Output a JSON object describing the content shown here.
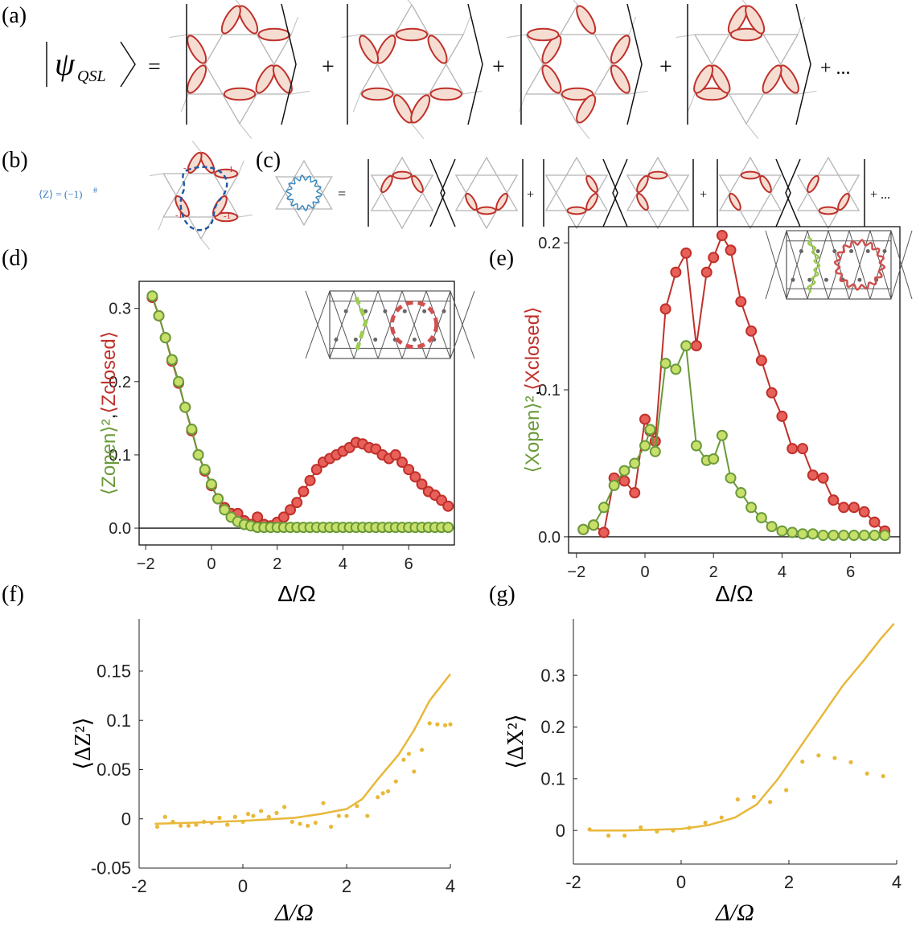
{
  "panel_a": {
    "label": "(a)",
    "psi": "ψ",
    "psi_sub": "QSL",
    "equals": "=",
    "plus": "+",
    "ellipsis": "+ ..."
  },
  "panel_b": {
    "label": "(b)",
    "expr": "⟨Z⟩ = (−1)",
    "expr_sup": "#",
    "minus_one": "-1"
  },
  "panel_c": {
    "label": "(c)",
    "equals": "=",
    "plus": "+",
    "ellipsis": "+ ..."
  },
  "chart_data": [
    {
      "type": "line",
      "panel_label": "(d)",
      "xlabel": "Δ/Ω",
      "ylabel_separator": ",",
      "xlim": [
        -2.2,
        7.39
      ],
      "ylim": [
        -0.023,
        0.337
      ],
      "xticks": [
        {
          "value": -2,
          "label": "−2"
        },
        0,
        2,
        4,
        6
      ],
      "yticks": [
        {
          "value": 0,
          "label": "0.0"
        },
        0.1,
        0.2,
        0.3
      ],
      "zero_line": true,
      "frame": true,
      "series": [
        {
          "name": "⟨Zopen⟩²",
          "color": "#6a9a3a",
          "fill": "#c8e06a",
          "mode": "lines+markers",
          "x": [
            -1.8,
            -1.6,
            -1.4,
            -1.2,
            -1.0,
            -0.8,
            -0.6,
            -0.4,
            -0.2,
            0,
            0.2,
            0.4,
            0.6,
            0.8,
            1.0,
            1.2,
            1.4,
            1.6,
            1.8,
            2.0,
            2.2,
            2.4,
            2.6,
            2.8,
            3.0,
            3.2,
            3.4,
            3.6,
            3.8,
            4.0,
            4.2,
            4.4,
            4.6,
            4.8,
            5.0,
            5.2,
            5.4,
            5.6,
            5.8,
            6.0,
            6.2,
            6.4,
            6.6,
            6.8,
            7.0,
            7.2
          ],
          "values": [
            0.317,
            0.29,
            0.26,
            0.23,
            0.2,
            0.165,
            0.135,
            0.1,
            0.08,
            0.06,
            0.04,
            0.025,
            0.015,
            0.009,
            0.005,
            0.003,
            0.001,
            0.001,
            0.001,
            0.001,
            0.001,
            0.001,
            0.001,
            0.001,
            0.001,
            0.001,
            0.001,
            0.001,
            0.001,
            0.001,
            0.001,
            0.001,
            0.001,
            0.001,
            0.001,
            0.001,
            0.001,
            0.001,
            0.001,
            0.001,
            0.001,
            0.001,
            0.001,
            0.001,
            0.001,
            0.001
          ]
        },
        {
          "name": "⟨Zclosed⟩",
          "color": "#c0302a",
          "fill": "#e8605a",
          "mode": "lines+markers",
          "x": [
            -1.8,
            -1.6,
            -1.4,
            -1.2,
            -1.0,
            -0.8,
            -0.6,
            -0.4,
            -0.2,
            0,
            0.2,
            0.4,
            0.6,
            0.8,
            1.0,
            1.2,
            1.4,
            1.6,
            1.8,
            2.0,
            2.2,
            2.4,
            2.6,
            2.8,
            3.0,
            3.2,
            3.4,
            3.6,
            3.8,
            4.0,
            4.2,
            4.4,
            4.6,
            4.8,
            5.0,
            5.2,
            5.4,
            5.6,
            5.8,
            6.0,
            6.2,
            6.4,
            6.6,
            6.8,
            7.0,
            7.2
          ],
          "values": [
            0.315,
            0.29,
            0.26,
            0.228,
            0.198,
            0.165,
            0.133,
            0.1,
            0.078,
            0.058,
            0.04,
            0.028,
            0.02,
            0.02,
            0.01,
            0.005,
            0.015,
            0.005,
            0.003,
            0.008,
            0.015,
            0.025,
            0.035,
            0.05,
            0.065,
            0.08,
            0.09,
            0.095,
            0.1,
            0.105,
            0.11,
            0.117,
            0.115,
            0.11,
            0.108,
            0.1,
            0.095,
            0.1,
            0.09,
            0.08,
            0.07,
            0.06,
            0.05,
            0.045,
            0.038,
            0.03
          ]
        }
      ]
    },
    {
      "type": "line",
      "panel_label": "(e)",
      "xlabel": "Δ/Ω",
      "ylabel_separator": ",",
      "xlim": [
        -2.23,
        7.44
      ],
      "ylim": [
        -0.011,
        0.211
      ],
      "xticks": [
        {
          "value": -2,
          "label": "−2"
        },
        0,
        2,
        4,
        6
      ],
      "yticks": [
        {
          "value": 0,
          "label": "0.0"
        },
        0.1,
        0.2
      ],
      "zero_line": true,
      "frame": true,
      "series": [
        {
          "name": "⟨Xopen⟩²",
          "color": "#6a9a3a",
          "fill": "#c8e06a",
          "mode": "lines+markers",
          "x": [
            -1.8,
            -1.5,
            -1.2,
            -0.9,
            -0.6,
            -0.3,
            0,
            0.15,
            0.3,
            0.6,
            0.9,
            1.2,
            1.5,
            1.8,
            2.0,
            2.25,
            2.5,
            2.8,
            3.1,
            3.4,
            3.7,
            4.0,
            4.3,
            4.6,
            4.9,
            5.2,
            5.5,
            5.8,
            6.1,
            6.4,
            6.7,
            7.0
          ],
          "values": [
            0.005,
            0.008,
            0.02,
            0.035,
            0.045,
            0.05,
            0.062,
            0.073,
            0.058,
            0.118,
            0.114,
            0.13,
            0.062,
            0.052,
            0.053,
            0.069,
            0.04,
            0.03,
            0.02,
            0.013,
            0.007,
            0.004,
            0.003,
            0.002,
            0.002,
            0.001,
            0.001,
            0.001,
            0.001,
            0.001,
            0.001,
            0.001
          ]
        },
        {
          "name": "⟨Xclosed⟩",
          "color": "#c0302a",
          "fill": "#e8605a",
          "mode": "lines+markers",
          "x": [
            -1.8,
            -1.5,
            -1.2,
            -0.9,
            -0.6,
            -0.3,
            0,
            0.15,
            0.3,
            0.6,
            0.9,
            1.2,
            1.5,
            1.8,
            2.0,
            2.25,
            2.5,
            2.8,
            3.1,
            3.4,
            3.7,
            4.0,
            4.3,
            4.6,
            4.9,
            5.2,
            5.5,
            5.8,
            6.1,
            6.4,
            6.7,
            7.0
          ],
          "values": [
            0.005,
            0.008,
            0.003,
            0.04,
            0.038,
            0.03,
            0.08,
            0.072,
            0.065,
            0.155,
            0.18,
            0.193,
            0.13,
            0.18,
            0.19,
            0.205,
            0.195,
            0.16,
            0.14,
            0.12,
            0.098,
            0.082,
            0.06,
            0.06,
            0.042,
            0.04,
            0.025,
            0.02,
            0.02,
            0.017,
            0.01,
            0.004
          ]
        }
      ]
    },
    {
      "type": "line",
      "panel_label": "(f)",
      "xlabel": "Δ/Ω",
      "ylabel": "⟨ΔZ²⟩",
      "xlim": [
        -2,
        4
      ],
      "ylim": [
        -0.05,
        0.203
      ],
      "xticks": [
        -2,
        0,
        2,
        4
      ],
      "yticks": [
        -0.05,
        0,
        0.05,
        0.1,
        0.15
      ],
      "zero_line": false,
      "frame": false,
      "series": [
        {
          "color": "#e8b83a",
          "mode": "lines",
          "x": [
            -1.7,
            -1,
            0,
            1,
            1.5,
            2,
            2.3,
            2.6,
            3,
            3.3,
            3.6,
            4
          ],
          "values": [
            -0.005,
            -0.004,
            -0.002,
            0.001,
            0.005,
            0.01,
            0.02,
            0.04,
            0.065,
            0.09,
            0.12,
            0.147
          ]
        },
        {
          "color": "#e8b83a",
          "mode": "markers",
          "x": [
            -1.65,
            -1.5,
            -1.35,
            -1.2,
            -1.05,
            -0.9,
            -0.75,
            -0.6,
            -0.45,
            -0.3,
            -0.15,
            0,
            0.1,
            0.2,
            0.35,
            0.5,
            0.65,
            0.8,
            0.95,
            1.1,
            1.25,
            1.4,
            1.55,
            1.7,
            1.85,
            2.0,
            2.2,
            2.4,
            2.6,
            2.7,
            2.8,
            2.95,
            3.1,
            3.2,
            3.3,
            3.45,
            3.6,
            3.75,
            3.9,
            4.0
          ],
          "values": [
            -0.008,
            0.002,
            -0.003,
            -0.007,
            -0.007,
            -0.006,
            -0.003,
            -0.004,
            0.001,
            -0.006,
            0.002,
            -0.003,
            0.005,
            0.003,
            0.008,
            0.002,
            0.006,
            0.012,
            -0.003,
            -0.005,
            -0.007,
            -0.004,
            0.016,
            -0.008,
            0.003,
            0.003,
            0.013,
            0.003,
            0.022,
            0.026,
            0.028,
            0.038,
            0.06,
            0.066,
            0.048,
            0.07,
            0.097,
            0.096,
            0.095,
            0.096
          ]
        }
      ]
    },
    {
      "type": "line",
      "panel_label": "(g)",
      "xlabel": "Δ/Ω",
      "ylabel": "⟨ΔX²⟩",
      "xlim": [
        -2,
        4
      ],
      "ylim": [
        -0.065,
        0.409
      ],
      "xticks": [
        -2,
        0,
        2,
        4
      ],
      "yticks": [
        0,
        0.1,
        0.2,
        0.3
      ],
      "zero_line": false,
      "frame": false,
      "series": [
        {
          "color": "#e8b83a",
          "mode": "lines",
          "x": [
            -1.7,
            -1,
            0,
            0.5,
            1,
            1.4,
            1.8,
            2.2,
            2.6,
            3.0,
            3.4,
            3.7,
            3.95
          ],
          "values": [
            0,
            0,
            0.003,
            0.01,
            0.025,
            0.05,
            0.1,
            0.16,
            0.22,
            0.28,
            0.33,
            0.37,
            0.4
          ]
        },
        {
          "color": "#e8b83a",
          "mode": "markers",
          "x": [
            -1.7,
            -1.35,
            -1.05,
            -0.75,
            -0.45,
            -0.15,
            0.15,
            0.45,
            0.75,
            1.05,
            1.35,
            1.65,
            1.95,
            2.25,
            2.55,
            2.85,
            3.15,
            3.45,
            3.75
          ],
          "values": [
            0.002,
            -0.01,
            -0.01,
            0.006,
            -0.002,
            0,
            0.005,
            0.015,
            0.025,
            0.06,
            0.065,
            0.055,
            0.078,
            0.133,
            0.145,
            0.14,
            0.132,
            0.11,
            0.105
          ]
        }
      ]
    }
  ]
}
